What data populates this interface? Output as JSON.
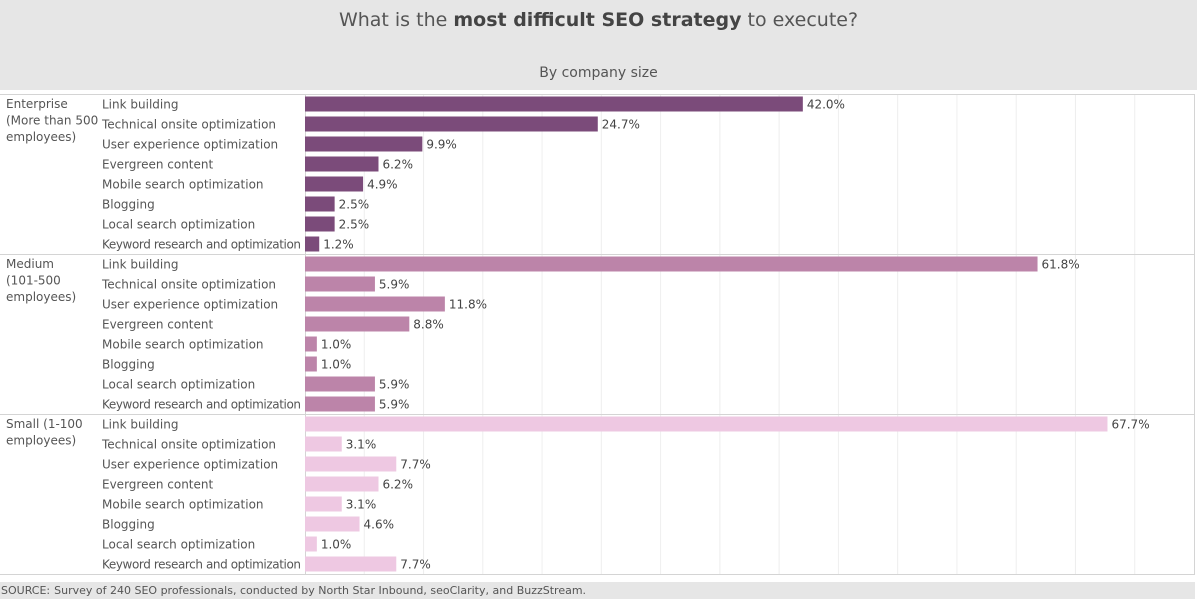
{
  "header": {
    "title_prefix": "What is the ",
    "title_bold": "most difficult SEO strategy",
    "title_suffix": " to execute?",
    "subtitle": "By company size"
  },
  "footer": {
    "source_label": "SOURCE:",
    "source_text": "Survey of 240 SEO professionals, conducted by North Star Inbound, seoClarity, and BuzzStream."
  },
  "chart_data": {
    "type": "bar",
    "orientation": "horizontal",
    "title": "What is the most difficult SEO strategy to execute?",
    "subtitle": "By company size",
    "value_format": "percent",
    "xlim": [
      0,
      75
    ],
    "grid": true,
    "categories": [
      "Link building",
      "Technical onsite optimization",
      "User experience optimization",
      "Evergreen content",
      "Mobile search optimization",
      "Blogging",
      "Local search optimization",
      "Keyword research and optimization"
    ],
    "series": [
      {
        "name": "Enterprise (More than 500 employees)",
        "color": "#7b4b7a",
        "values": [
          42.0,
          24.7,
          9.9,
          6.2,
          4.9,
          2.5,
          2.5,
          1.2
        ]
      },
      {
        "name": "Medium (101-500 employees)",
        "color": "#bc84a9",
        "values": [
          61.8,
          5.9,
          11.8,
          8.8,
          1.0,
          1.0,
          5.9,
          5.9
        ]
      },
      {
        "name": "Small (1-100 employees)",
        "color": "#eec8e2",
        "values": [
          67.7,
          3.1,
          7.7,
          6.2,
          3.1,
          4.6,
          1.0,
          7.7
        ]
      }
    ]
  }
}
